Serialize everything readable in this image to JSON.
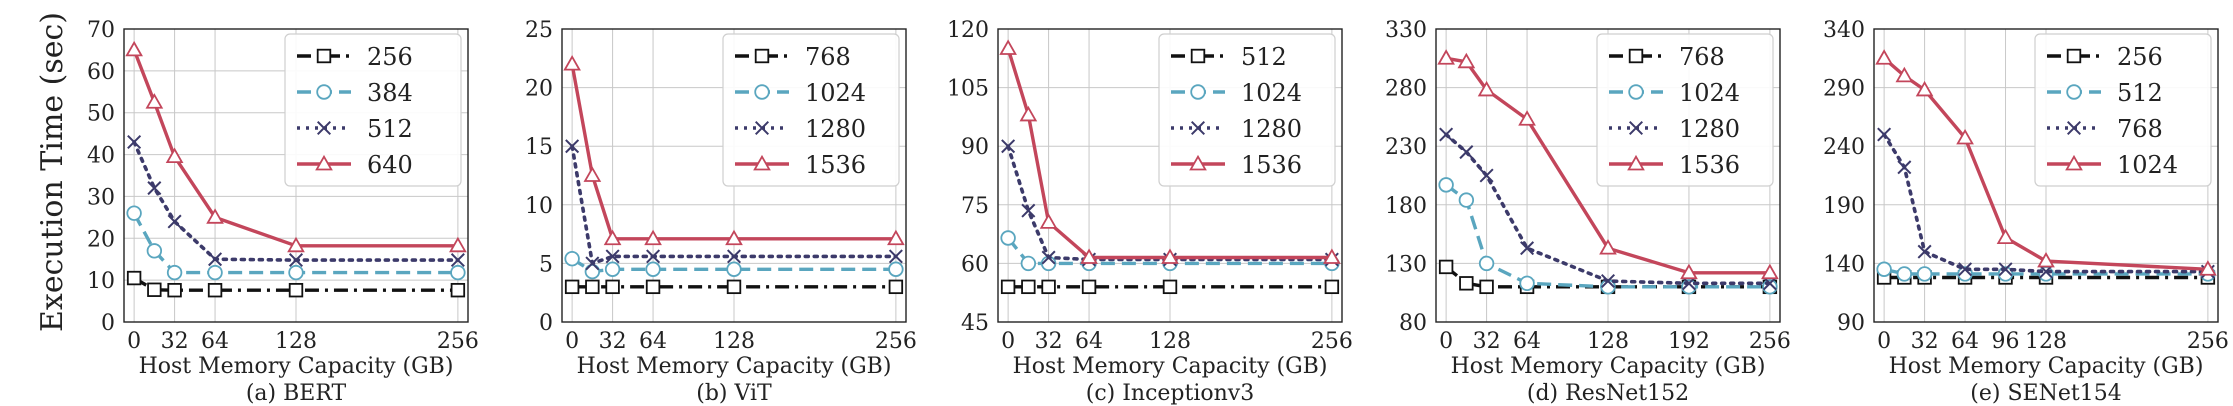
{
  "ylabel": "Execution Time (sec)",
  "colors": {
    "black": "#111111",
    "teal": "#5aa6bf",
    "navy": "#3c3a6a",
    "red": "#c3465b",
    "grid": "#c8c8c8"
  },
  "series_styles": [
    {
      "color": "black",
      "dash": "dashdot",
      "marker": "square"
    },
    {
      "color": "teal",
      "dash": "dashed",
      "marker": "circle"
    },
    {
      "color": "navy",
      "dash": "dotted",
      "marker": "x"
    },
    {
      "color": "red",
      "dash": "solid",
      "marker": "triangle"
    }
  ],
  "chart_data": [
    {
      "type": "line",
      "caption": "(a) BERT",
      "xlabel": "Host Memory Capacity (GB)",
      "ylabel": "Execution Time (sec)",
      "xticks": [
        0,
        32,
        64,
        128,
        256
      ],
      "xlim": [
        -8,
        264
      ],
      "yticks": [
        0,
        10,
        20,
        30,
        40,
        50,
        60,
        70
      ],
      "ylim": [
        0,
        70
      ],
      "grid": true,
      "legend_position": "top-right",
      "series": [
        {
          "name": "256",
          "x": [
            0,
            16,
            32,
            64,
            128,
            256
          ],
          "y": [
            10.5,
            7.7,
            7.6,
            7.6,
            7.6,
            7.6
          ]
        },
        {
          "name": "384",
          "x": [
            0,
            16,
            32,
            64,
            128,
            256
          ],
          "y": [
            26,
            17,
            11.8,
            11.8,
            11.8,
            11.8
          ]
        },
        {
          "name": "512",
          "x": [
            0,
            16,
            32,
            64,
            128,
            256
          ],
          "y": [
            43,
            32,
            24,
            15,
            14.8,
            14.8
          ]
        },
        {
          "name": "640",
          "x": [
            0,
            16,
            32,
            64,
            128,
            256
          ],
          "y": [
            65,
            52.5,
            39.5,
            25,
            18.2,
            18.2
          ]
        }
      ]
    },
    {
      "type": "line",
      "caption": "(b) ViT",
      "xlabel": "Host Memory Capacity (GB)",
      "xticks": [
        0,
        32,
        64,
        128,
        256
      ],
      "xlim": [
        -8,
        264
      ],
      "yticks": [
        0,
        5,
        10,
        15,
        20,
        25
      ],
      "ylim": [
        0,
        25
      ],
      "grid": true,
      "legend_position": "top-right",
      "series": [
        {
          "name": "768",
          "x": [
            0,
            16,
            32,
            64,
            128,
            256
          ],
          "y": [
            3,
            3,
            3,
            3,
            3,
            3
          ]
        },
        {
          "name": "1024",
          "x": [
            0,
            16,
            32,
            64,
            128,
            256
          ],
          "y": [
            5.4,
            4.3,
            4.5,
            4.5,
            4.5,
            4.5
          ]
        },
        {
          "name": "1280",
          "x": [
            0,
            16,
            32,
            64,
            128,
            256
          ],
          "y": [
            15,
            5,
            5.6,
            5.6,
            5.6,
            5.6
          ]
        },
        {
          "name": "1536",
          "x": [
            0,
            16,
            32,
            64,
            128,
            256
          ],
          "y": [
            22,
            12.5,
            7.1,
            7.1,
            7.1,
            7.1
          ]
        }
      ]
    },
    {
      "type": "line",
      "caption": "(c) Inceptionv3",
      "xlabel": "Host Memory Capacity (GB)",
      "xticks": [
        0,
        32,
        64,
        128,
        256
      ],
      "xlim": [
        -8,
        264
      ],
      "yticks": [
        45,
        60,
        75,
        90,
        105,
        120
      ],
      "ylim": [
        45,
        120
      ],
      "grid": true,
      "legend_position": "top-right",
      "series": [
        {
          "name": "512",
          "x": [
            0,
            16,
            32,
            64,
            128,
            256
          ],
          "y": [
            54,
            54,
            54,
            54,
            54,
            54
          ]
        },
        {
          "name": "1024",
          "x": [
            0,
            16,
            32,
            64,
            128,
            256
          ],
          "y": [
            66.5,
            60,
            60,
            60,
            60,
            60
          ]
        },
        {
          "name": "1280",
          "x": [
            0,
            16,
            32,
            64,
            128,
            256
          ],
          "y": [
            90,
            73.5,
            61.5,
            61,
            61,
            61
          ]
        },
        {
          "name": "1536",
          "x": [
            0,
            16,
            32,
            64,
            128,
            256
          ],
          "y": [
            115,
            98,
            70.5,
            61.5,
            61.5,
            61.5
          ]
        }
      ]
    },
    {
      "type": "line",
      "caption": "(d) ResNet152",
      "xlabel": "Host Memory Capacity (GB)",
      "xticks": [
        0,
        32,
        64,
        128,
        192,
        256
      ],
      "xlim": [
        -8,
        264
      ],
      "yticks": [
        80,
        130,
        180,
        230,
        280,
        330
      ],
      "ylim": [
        80,
        330
      ],
      "grid": true,
      "legend_position": "top-right",
      "series": [
        {
          "name": "768",
          "x": [
            0,
            16,
            32,
            64,
            128,
            192,
            256
          ],
          "y": [
            127,
            113,
            110,
            110,
            110,
            110,
            110
          ]
        },
        {
          "name": "1024",
          "x": [
            0,
            16,
            32,
            64,
            128,
            192,
            256
          ],
          "y": [
            197,
            184,
            130,
            113,
            110,
            110,
            110
          ]
        },
        {
          "name": "1280",
          "x": [
            0,
            16,
            32,
            64,
            128,
            192,
            256
          ],
          "y": [
            240,
            225,
            205,
            143,
            115,
            113,
            113
          ]
        },
        {
          "name": "1536",
          "x": [
            0,
            16,
            32,
            64,
            128,
            192,
            256
          ],
          "y": [
            305,
            302,
            278,
            253,
            143,
            122,
            122
          ]
        }
      ]
    },
    {
      "type": "line",
      "caption": "(e) SENet154",
      "xlabel": "Host Memory Capacity (GB)",
      "xticks": [
        0,
        32,
        64,
        96,
        128,
        256
      ],
      "xlim": [
        -8,
        264
      ],
      "yticks": [
        90,
        140,
        190,
        240,
        290,
        340
      ],
      "ylim": [
        90,
        340
      ],
      "grid": true,
      "legend_position": "top-right",
      "series": [
        {
          "name": "256",
          "x": [
            0,
            16,
            32,
            64,
            96,
            128,
            256
          ],
          "y": [
            128,
            128,
            128,
            128,
            128,
            128,
            128
          ]
        },
        {
          "name": "512",
          "x": [
            0,
            16,
            32,
            64,
            96,
            128,
            256
          ],
          "y": [
            135,
            131,
            131,
            131,
            131,
            131,
            131
          ]
        },
        {
          "name": "768",
          "x": [
            0,
            16,
            32,
            64,
            96,
            128,
            256
          ],
          "y": [
            250,
            222,
            150,
            135,
            135,
            133,
            133
          ]
        },
        {
          "name": "1024",
          "x": [
            0,
            16,
            32,
            64,
            96,
            128,
            256
          ],
          "y": [
            315,
            300,
            288,
            247,
            162,
            142,
            135
          ]
        }
      ]
    }
  ]
}
